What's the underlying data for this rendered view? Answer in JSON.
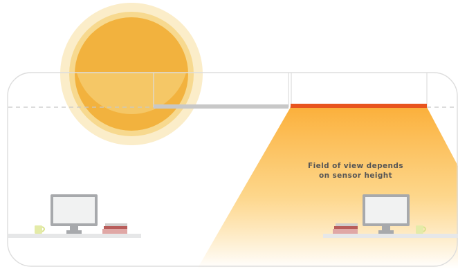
{
  "colors": {
    "sun": "#F2B23E",
    "sun_halo": "#F7D98F",
    "sensor": "#E8541E",
    "beam_top": "#FBB03B",
    "beam_bottom": "#FFFFFF",
    "room_outline": "#DDDDDD",
    "ceiling_dash": "#C8C8C8",
    "monitor_frame": "#A7A9AC",
    "desk": "#E6E7E8"
  },
  "icons": {
    "sun": "sun-icon",
    "sensor": "sensor-bar-icon",
    "monitor": "monitor-icon",
    "mug": "mug-icon",
    "books": "books-icon"
  },
  "annotation": {
    "line1": "Field of view depends",
    "line2": "on sensor height"
  }
}
